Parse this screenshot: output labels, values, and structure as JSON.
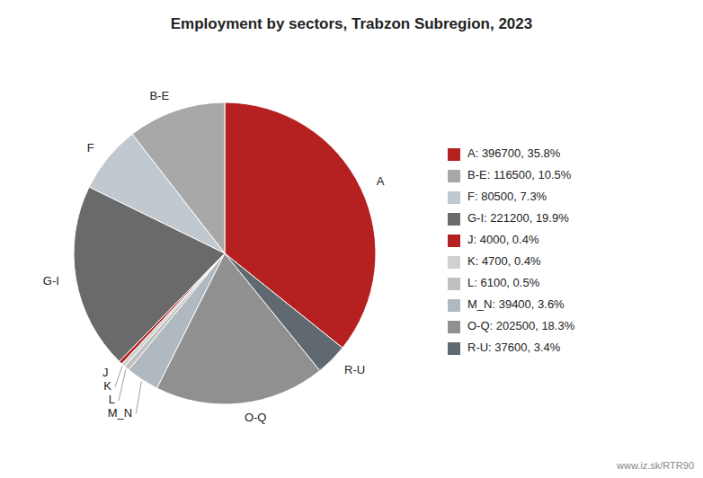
{
  "chart_data": {
    "type": "pie",
    "title": "Employment by sectors, Trabzon Subregion, 2023",
    "categories": [
      "A",
      "B-E",
      "F",
      "G-I",
      "J",
      "K",
      "L",
      "M_N",
      "O-Q",
      "R-U"
    ],
    "values": [
      396700,
      116500,
      80500,
      221200,
      4000,
      4700,
      6100,
      39400,
      202500,
      37600
    ],
    "colors": [
      "#b52020",
      "#a8a8a8",
      "#c0c8d0",
      "#6a6a6a",
      "#b52020",
      "#d0d0d0",
      "#c0c0c0",
      "#b0b8c0",
      "#909090",
      "#606870"
    ],
    "legend_labels": [
      "A: 396700, 35.8%",
      "B-E: 116500, 10.5%",
      "F: 80500, 7.3%",
      "G-I: 221200, 19.9%",
      "J: 4000, 0.4%",
      "K: 4700, 0.4%",
      "L: 6100, 0.5%",
      "M_N: 39400, 3.6%",
      "O-Q: 202500, 18.3%",
      "R-U: 37600, 3.4%"
    ],
    "legend": "right",
    "annotations": [
      "www.iz.sk/RTR90"
    ]
  }
}
